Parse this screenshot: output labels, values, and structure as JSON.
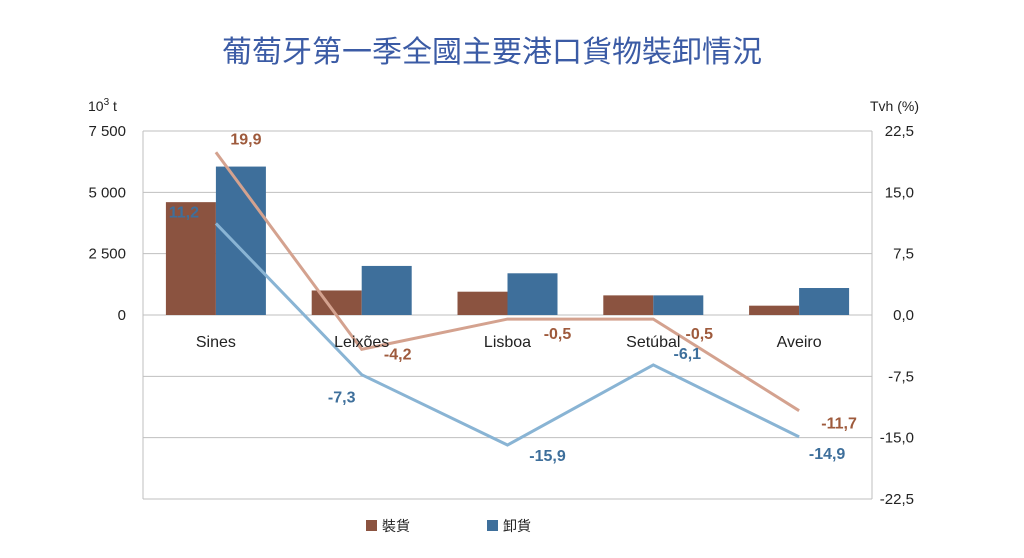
{
  "chart_data": {
    "type": "bar",
    "title": "葡萄牙第一季全國主要港口貨物裝卸情況",
    "categories": [
      "Sines",
      "Leixões",
      "Lisboa",
      "Setúbal",
      "Aveiro"
    ],
    "y_left": {
      "unit_base": "10",
      "unit_exp": "3",
      "unit_suffix": " t",
      "range": [
        -7500,
        7500
      ],
      "ticks": [
        0,
        2500,
        5000,
        7500
      ],
      "tick_labels": [
        "0",
        "2 500",
        "5 000",
        "7 500"
      ]
    },
    "y_right": {
      "unit": "Tvh (%)",
      "range": [
        -22.5,
        22.5
      ],
      "ticks": [
        22.5,
        15.0,
        7.5,
        0.0,
        -7.5,
        -15.0,
        -22.5
      ],
      "tick_labels": [
        "22,5",
        "15,0",
        "7,5",
        "0,0",
        "-7,5",
        "-15,0",
        "-22,5"
      ]
    },
    "series": [
      {
        "name": "裝貨",
        "kind": "bar",
        "axis": "left",
        "color": "#8b5340",
        "values": [
          4600,
          1000,
          950,
          800,
          380
        ]
      },
      {
        "name": "卸貨",
        "kind": "bar",
        "axis": "left",
        "color": "#3e6f9b",
        "values": [
          6050,
          2000,
          1700,
          800,
          1100
        ]
      },
      {
        "name": "裝貨",
        "kind": "line",
        "axis": "right",
        "color": "#d4a28f",
        "label_color": "#9e5a3c",
        "values": [
          19.9,
          -4.2,
          -0.5,
          -0.5,
          -11.7
        ],
        "labels": [
          "19,9",
          "-4,2",
          "-0,5",
          "-0,5",
          "-11,7"
        ]
      },
      {
        "name": "卸貨",
        "kind": "line",
        "axis": "right",
        "color": "#89b4d4",
        "label_color": "#3e6f9b",
        "values": [
          11.2,
          -7.3,
          -15.9,
          -6.1,
          -14.9
        ],
        "labels": [
          "11,2",
          "-7,3",
          "-15,9",
          "-6,1",
          "-14,9"
        ]
      }
    ],
    "legend": {
      "position": "bottom",
      "items": [
        "裝貨",
        "卸貨"
      ]
    },
    "grid": true
  }
}
